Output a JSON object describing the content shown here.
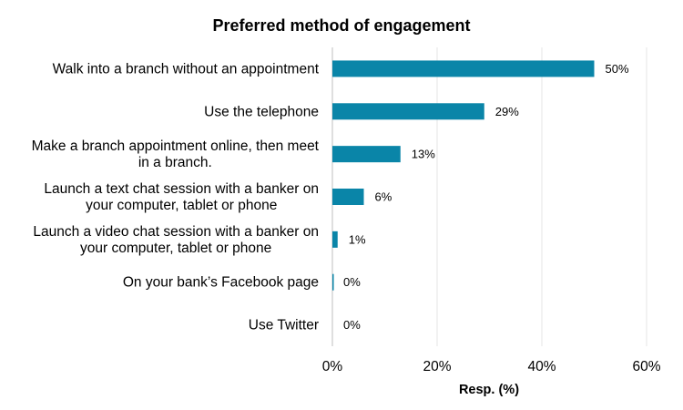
{
  "chart_data": {
    "type": "bar",
    "orientation": "horizontal",
    "title": "Preferred method of engagement",
    "xlabel": "Resp. (%)",
    "ylabel": "",
    "xlim": [
      0,
      60
    ],
    "xticks": [
      0,
      20,
      40,
      60
    ],
    "tick_suffix": "%",
    "grid": true,
    "bar_color": "#0a85a8",
    "categories": [
      [
        "Walk into a branch without an appointment"
      ],
      [
        "Use the telephone"
      ],
      [
        "Make a branch appointment online, then meet",
        "in a branch."
      ],
      [
        "Launch a text chat session with a banker on",
        "your computer, tablet or phone"
      ],
      [
        "Launch a video chat session with a banker on",
        "your computer, tablet or phone"
      ],
      [
        "On your bank’s Facebook page"
      ],
      [
        "Use Twitter"
      ]
    ],
    "values": [
      50,
      29,
      13,
      6,
      1,
      0,
      0
    ],
    "value_labels": [
      "50%",
      "29%",
      "13%",
      "6%",
      "1%",
      "0%",
      "0%"
    ]
  }
}
